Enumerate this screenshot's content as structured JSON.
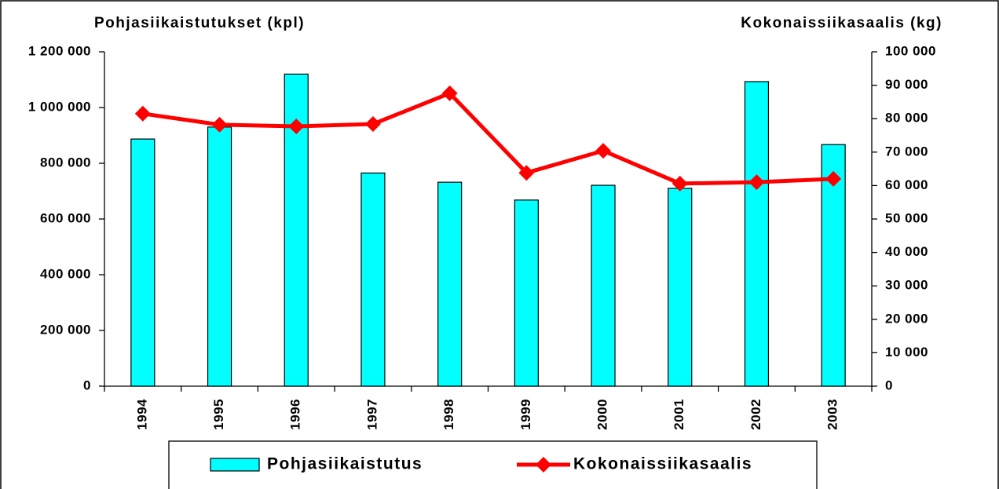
{
  "chart_data": {
    "type": "bar-line",
    "y_title": "Pohjasiikaistutukset (kpl)",
    "y2_title": "Kokonaissiikasaalis (kg)",
    "categories": [
      "1994",
      "1995",
      "1996",
      "1997",
      "1998",
      "1999",
      "2000",
      "2001",
      "2002",
      "2003"
    ],
    "series": [
      {
        "name": "Pohjasiikaistutus",
        "type": "bar",
        "color": "#00ffff",
        "values": [
          887000,
          930000,
          1120000,
          765000,
          732000,
          668000,
          721000,
          710000,
          1093000,
          867000
        ]
      },
      {
        "name": "Kokonaissiikasaalis",
        "type": "line",
        "axis": "y2",
        "color": "#ff0000",
        "values": [
          81500,
          78200,
          77700,
          78400,
          87600,
          63800,
          70400,
          60600,
          61000,
          62000
        ]
      }
    ],
    "ylim": [
      0,
      1200000
    ],
    "yticks": [
      0,
      {
        "value": 200000,
        "label": "200 000"
      },
      {
        "value": 400000,
        "label": "400 000"
      },
      {
        "value": 600000,
        "label": "600 000"
      },
      {
        "value": 800000,
        "label": "800 000"
      },
      {
        "value": 1000000,
        "label": "1 000 000"
      },
      {
        "value": 1200000,
        "label": "1 200 000"
      }
    ],
    "y2lim": [
      0,
      100000
    ],
    "y2ticks": [
      0,
      {
        "value": 10000,
        "label": "10 000"
      },
      {
        "value": 20000,
        "label": "20 000"
      },
      {
        "value": 30000,
        "label": "30 000"
      },
      {
        "value": 40000,
        "label": "40 000"
      },
      {
        "value": 50000,
        "label": "50 000"
      },
      {
        "value": 60000,
        "label": "60 000"
      },
      {
        "value": 70000,
        "label": "70 000"
      },
      {
        "value": 80000,
        "label": "80 000"
      },
      {
        "value": 90000,
        "label": "90 000"
      },
      {
        "value": 100000,
        "label": "100 000"
      }
    ],
    "legend": "bottom"
  }
}
